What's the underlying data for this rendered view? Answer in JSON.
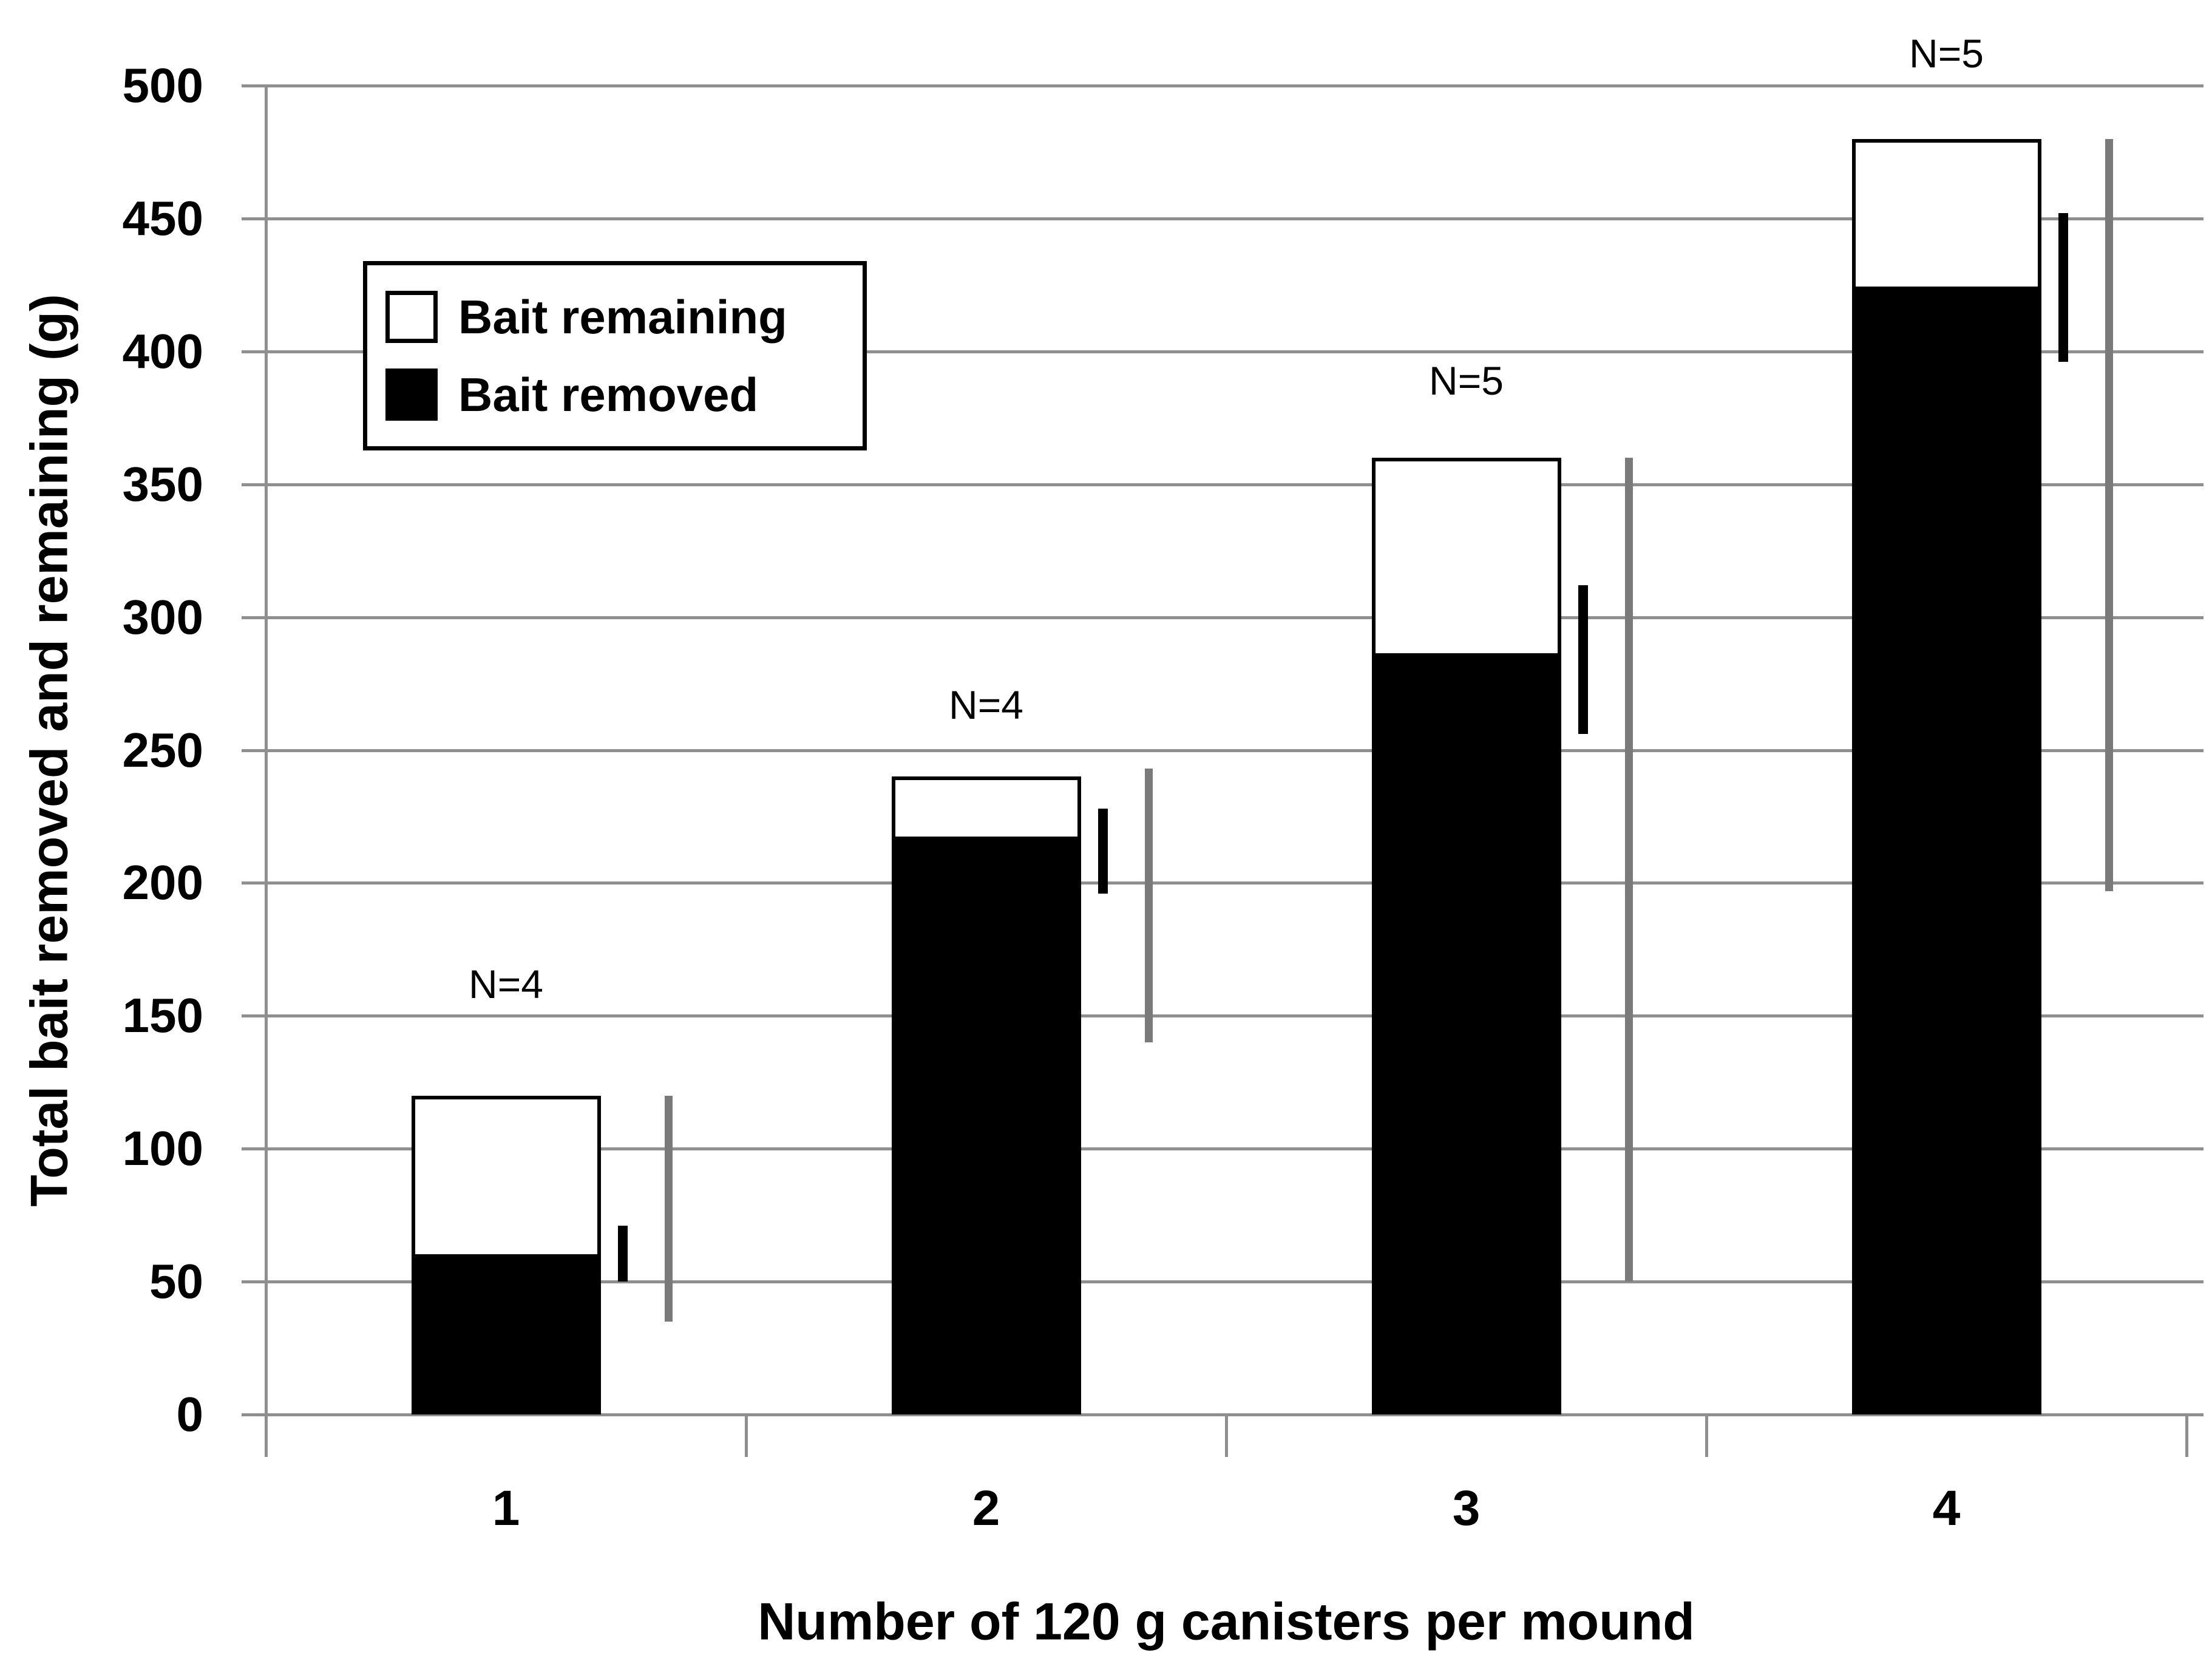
{
  "chart_data": {
    "type": "bar",
    "subtype": "stacked-vertical",
    "title": "",
    "xlabel": "Number of 120 g canisters per mound",
    "ylabel": "Total bait removed and remaining (g)",
    "categories": [
      "1",
      "2",
      "3",
      "4"
    ],
    "series": [
      {
        "name": "Bait removed",
        "color": "#000000",
        "values": [
          59,
          216,
          285,
          423
        ]
      },
      {
        "name": "Bait remaining",
        "color": "#ffffff",
        "values": [
          61,
          24,
          75,
          57
        ]
      }
    ],
    "stack_totals": [
      120,
      240,
      360,
      480
    ],
    "n_labels": [
      {
        "text": "N=4",
        "y": 162
      },
      {
        "text": "N=4",
        "y": 267
      },
      {
        "text": "N=5",
        "y": 389
      },
      {
        "text": "N=5",
        "y": 512
      }
    ],
    "error_bars_black": [
      {
        "low": 50,
        "high": 71
      },
      {
        "low": 196,
        "high": 228
      },
      {
        "low": 256,
        "high": 312
      },
      {
        "low": 396,
        "high": 452
      }
    ],
    "error_bars_gray": [
      {
        "low": 35,
        "high": 120
      },
      {
        "low": 140,
        "high": 243
      },
      {
        "low": 50,
        "high": 360
      },
      {
        "low": 197,
        "high": 480
      }
    ],
    "ylim": [
      0,
      500
    ],
    "ytick_step": 50,
    "grid": true,
    "legend_position": "upper-left-inside",
    "legend": [
      {
        "label": "Bait remaining",
        "swatch": "white"
      },
      {
        "label": "Bait removed",
        "swatch": "black"
      }
    ],
    "colors": {
      "bar_removed": "#000000",
      "bar_remaining": "#ffffff",
      "bar_border": "#000000",
      "gridline": "#8f8f8f",
      "axis": "#8f8f8f",
      "error_black": "#000000",
      "error_gray": "#7a7a7a",
      "text": "#000000",
      "background": "#ffffff"
    }
  }
}
